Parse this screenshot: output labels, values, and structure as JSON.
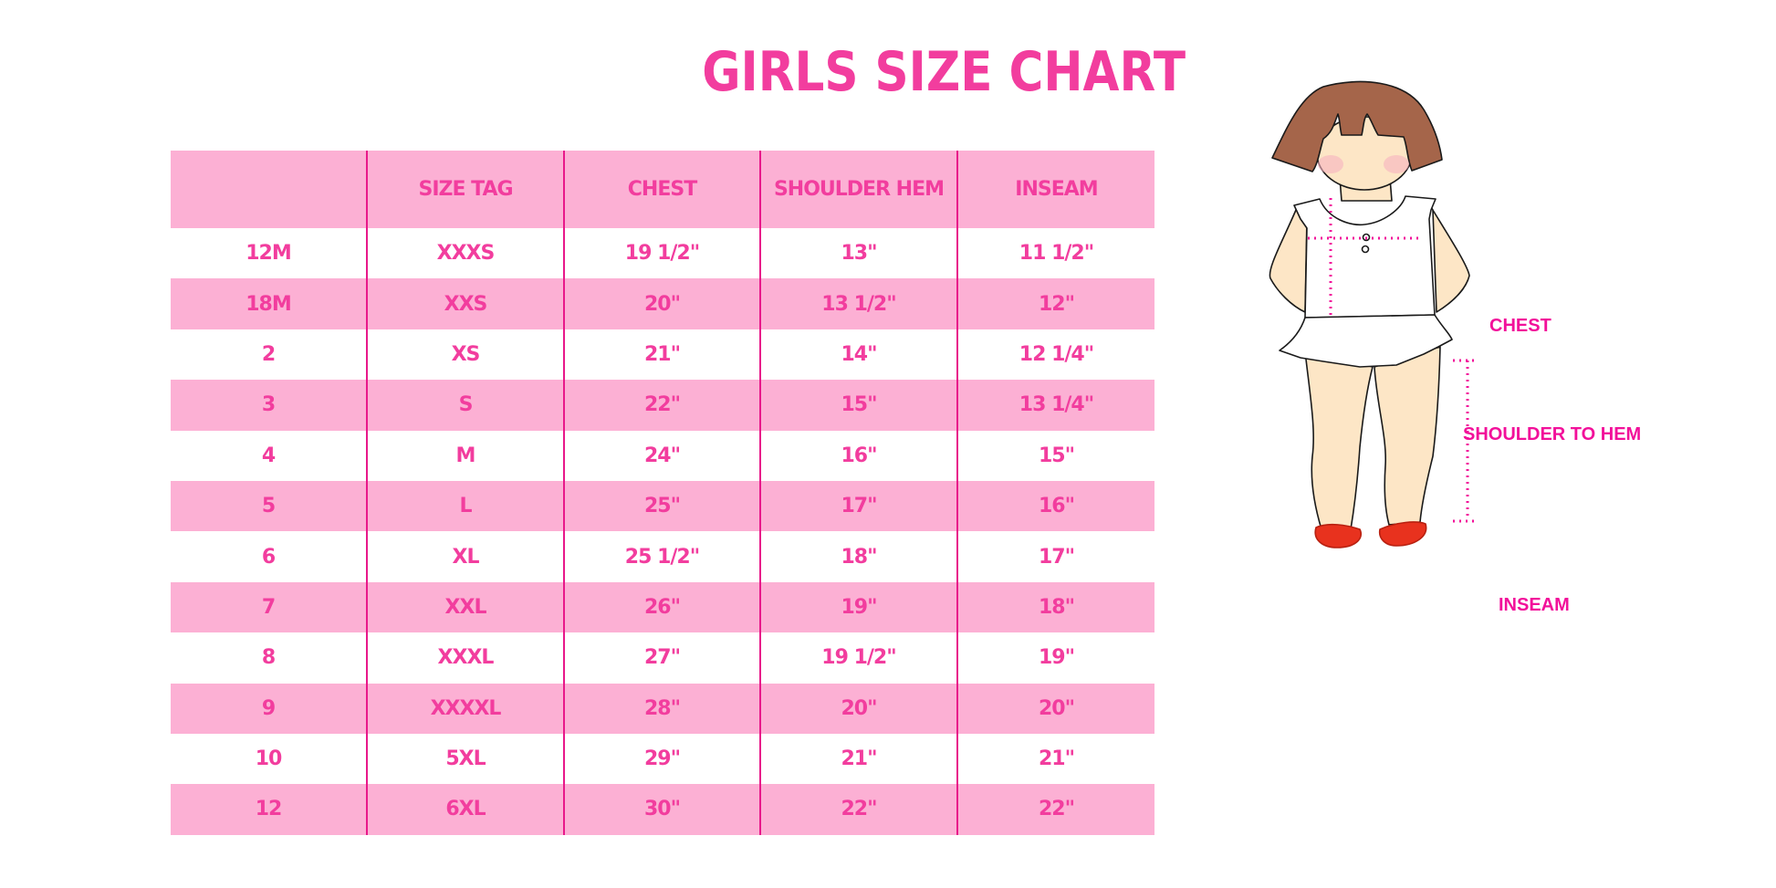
{
  "title": "GIRLS SIZE CHART",
  "colors": {
    "accent": "#f23d9e",
    "row_band": "#fcb0d4",
    "divider": "#e8188a",
    "hair": "#a5654a",
    "skin": "#fde6c6",
    "shoes": "#e8321e"
  },
  "table": {
    "headers": [
      "",
      "SIZE TAG",
      "CHEST",
      "SHOULDER HEM",
      "INSEAM"
    ],
    "rows": [
      [
        "12M",
        "XXXS",
        "19 1/2\"",
        "13\"",
        "11 1/2\""
      ],
      [
        "18M",
        "XXS",
        "20\"",
        "13 1/2\"",
        "12\""
      ],
      [
        "2",
        "XS",
        "21\"",
        "14\"",
        "12 1/4\""
      ],
      [
        "3",
        "S",
        "22\"",
        "15\"",
        "13 1/4\""
      ],
      [
        "4",
        "M",
        "24\"",
        "16\"",
        "15\""
      ],
      [
        "5",
        "L",
        "25\"",
        "17\"",
        "16\""
      ],
      [
        "6",
        "XL",
        "25 1/2\"",
        "18\"",
        "17\""
      ],
      [
        "7",
        "XXL",
        "26\"",
        "19\"",
        "18\""
      ],
      [
        "8",
        "XXXL",
        "27\"",
        "19 1/2\"",
        "19\""
      ],
      [
        "9",
        "XXXXL",
        "28\"",
        "20\"",
        "20\""
      ],
      [
        "10",
        "5XL",
        "29\"",
        "21\"",
        "21\""
      ],
      [
        "12",
        "6XL",
        "30\"",
        "22\"",
        "22\""
      ]
    ]
  },
  "figure": {
    "labels": {
      "chest": "CHEST",
      "shoulder_to_hem": "SHOULDER TO HEM",
      "inseam": "INSEAM"
    }
  }
}
